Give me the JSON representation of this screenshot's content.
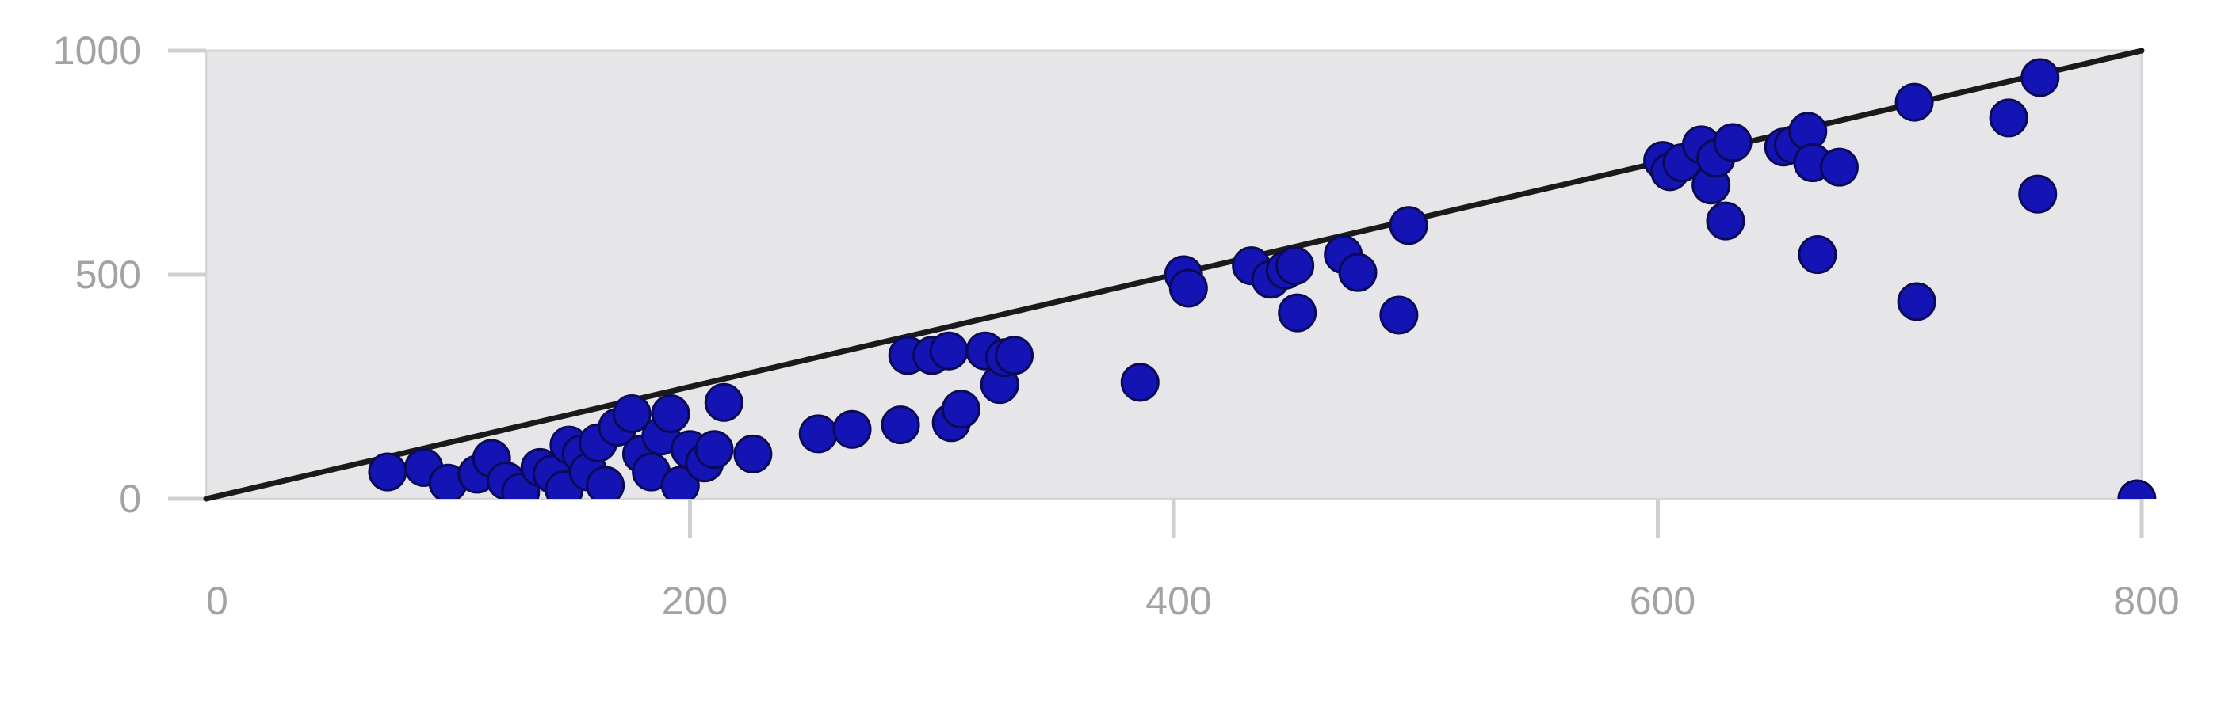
{
  "chart_data": {
    "type": "scatter",
    "title": "",
    "xlabel": "",
    "ylabel": "",
    "xlim": [
      0,
      800
    ],
    "ylim": [
      0,
      1000
    ],
    "x_ticks": [
      "0",
      "200",
      "400",
      "600",
      "800"
    ],
    "y_ticks": [
      "0",
      "500",
      "1000"
    ],
    "grid": false,
    "plot_background": "#e6e5e8",
    "point_color": "#1414b4",
    "line_color": "#1a1a1a",
    "reference_line": {
      "x": [
        0,
        800
      ],
      "y": [
        0,
        1000
      ]
    },
    "series": [
      {
        "points": [
          [
            75,
            60
          ],
          [
            90,
            70
          ],
          [
            100,
            35
          ],
          [
            112,
            55
          ],
          [
            118,
            90
          ],
          [
            124,
            40
          ],
          [
            130,
            15
          ],
          [
            138,
            70
          ],
          [
            143,
            55
          ],
          [
            148,
            20
          ],
          [
            150,
            120
          ],
          [
            155,
            100
          ],
          [
            158,
            60
          ],
          [
            162,
            125
          ],
          [
            165,
            30
          ],
          [
            170,
            160
          ],
          [
            176,
            190
          ],
          [
            180,
            100
          ],
          [
            184,
            60
          ],
          [
            188,
            140
          ],
          [
            192,
            190
          ],
          [
            196,
            30
          ],
          [
            200,
            110
          ],
          [
            206,
            80
          ],
          [
            210,
            110
          ],
          [
            214,
            215
          ],
          [
            226,
            100
          ],
          [
            253,
            145
          ],
          [
            267,
            155
          ],
          [
            287,
            165
          ],
          [
            290,
            320
          ],
          [
            300,
            320
          ],
          [
            307,
            330
          ],
          [
            308,
            170
          ],
          [
            312,
            200
          ],
          [
            322,
            330
          ],
          [
            328,
            255
          ],
          [
            330,
            315
          ],
          [
            334,
            320
          ],
          [
            386,
            260
          ],
          [
            404,
            500
          ],
          [
            406,
            470
          ],
          [
            432,
            520
          ],
          [
            440,
            490
          ],
          [
            446,
            510
          ],
          [
            450,
            520
          ],
          [
            451,
            415
          ],
          [
            470,
            545
          ],
          [
            476,
            505
          ],
          [
            493,
            410
          ],
          [
            497,
            610
          ],
          [
            602,
            755
          ],
          [
            605,
            730
          ],
          [
            610,
            750
          ],
          [
            618,
            790
          ],
          [
            622,
            700
          ],
          [
            624,
            760
          ],
          [
            628,
            620
          ],
          [
            631,
            795
          ],
          [
            652,
            785
          ],
          [
            656,
            790
          ],
          [
            662,
            820
          ],
          [
            664,
            750
          ],
          [
            666,
            545
          ],
          [
            675,
            740
          ],
          [
            706,
            885
          ],
          [
            707,
            440
          ],
          [
            745,
            850
          ],
          [
            757,
            680
          ],
          [
            758,
            940
          ],
          [
            798,
            0
          ]
        ]
      }
    ]
  }
}
